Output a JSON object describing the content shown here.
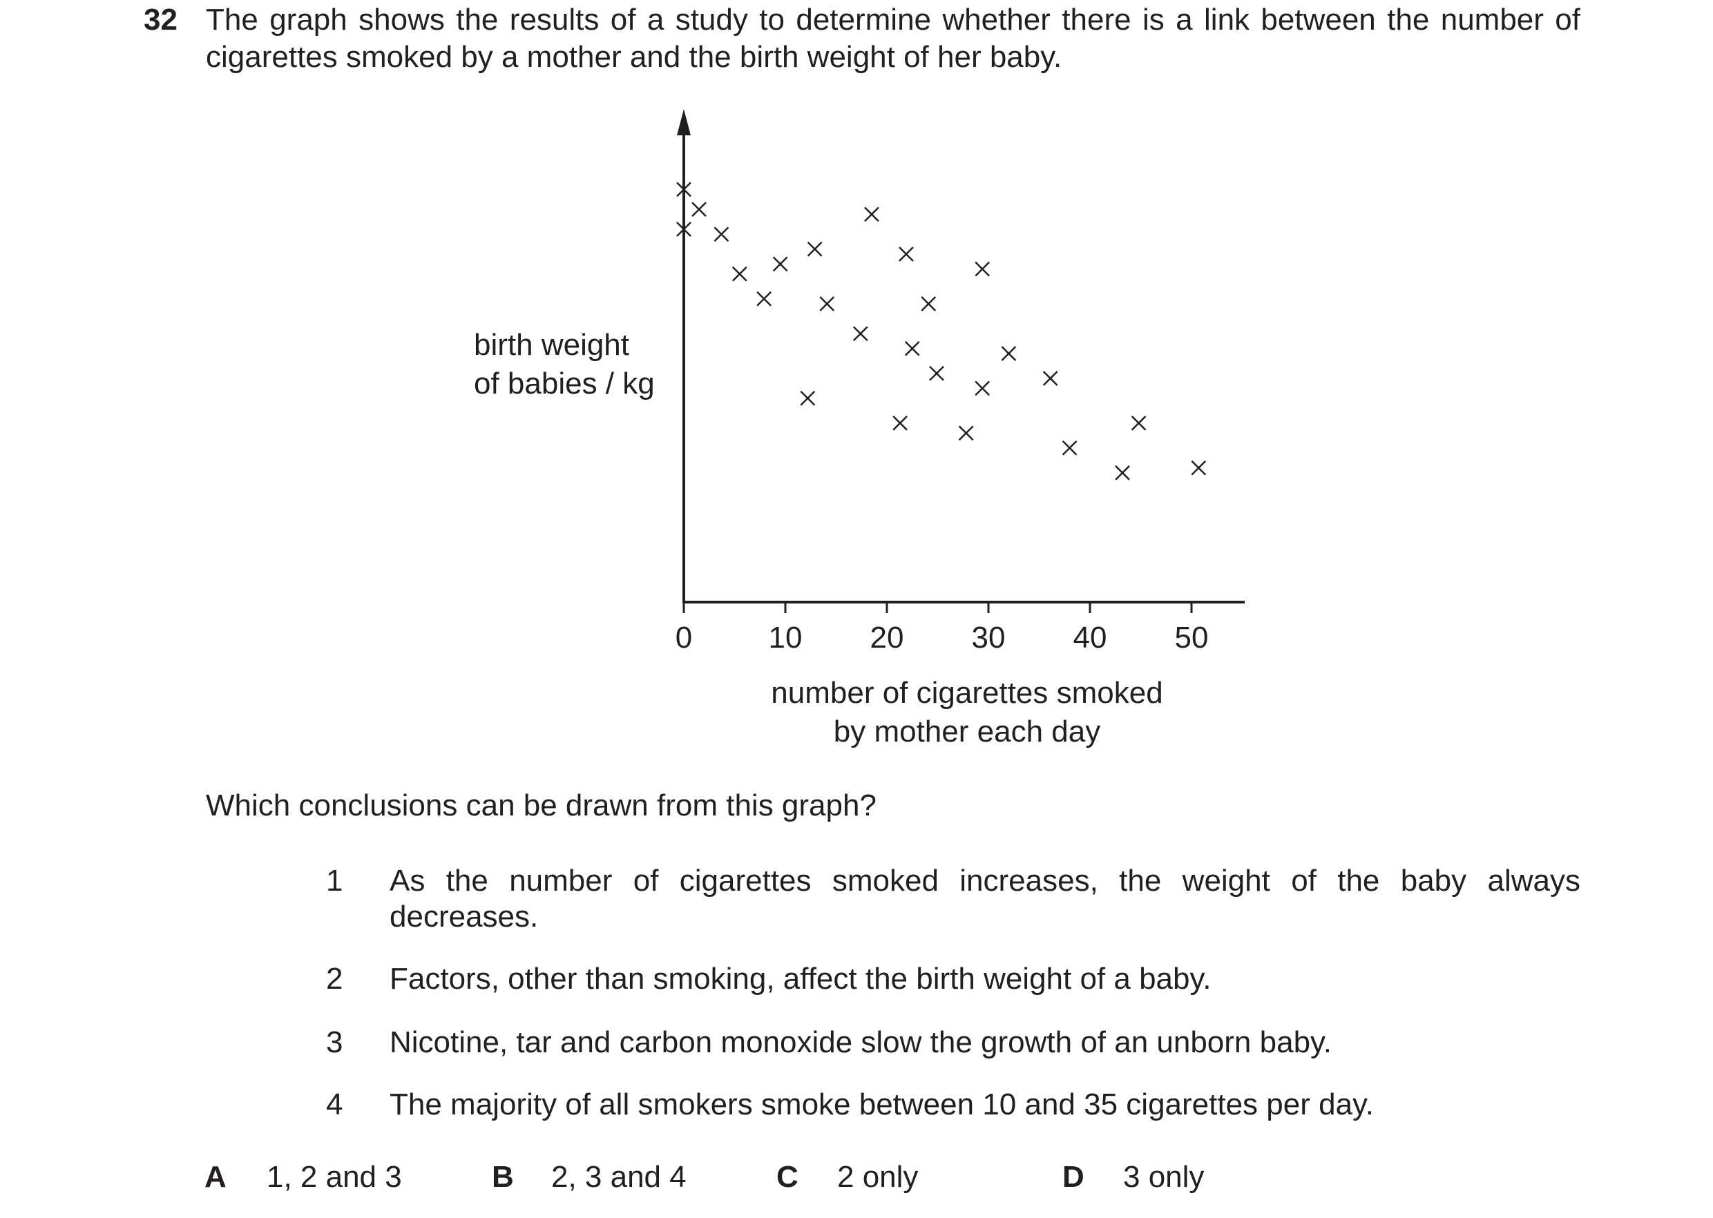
{
  "question": {
    "number": "32",
    "stem": "The graph shows the results of a study to determine whether there is a link between the number of cigarettes smoked by a mother and the birth weight of her baby.",
    "prompt": "Which conclusions can be drawn from this graph?"
  },
  "chart_data": {
    "type": "scatter",
    "marker": "cross",
    "ylabel_line1": "birth weight",
    "ylabel_line2": "of babies / kg",
    "xlabel_line1": "number of cigarettes smoked",
    "xlabel_line2": "by mother each day",
    "xlim": [
      0,
      55
    ],
    "x_ticks": [
      "0",
      "10",
      "20",
      "30",
      "40",
      "50"
    ],
    "y_ticks_labeled": false,
    "grid": false,
    "points": [
      {
        "x": 0,
        "y": 0.83
      },
      {
        "x": 0,
        "y": 0.75
      },
      {
        "x": 1.5,
        "y": 0.79
      },
      {
        "x": 3.7,
        "y": 0.74
      },
      {
        "x": 5.5,
        "y": 0.66
      },
      {
        "x": 7.9,
        "y": 0.61
      },
      {
        "x": 9.5,
        "y": 0.68
      },
      {
        "x": 12.2,
        "y": 0.41
      },
      {
        "x": 12.9,
        "y": 0.71
      },
      {
        "x": 14.1,
        "y": 0.6
      },
      {
        "x": 17.4,
        "y": 0.54
      },
      {
        "x": 18.5,
        "y": 0.78
      },
      {
        "x": 21.3,
        "y": 0.36
      },
      {
        "x": 21.9,
        "y": 0.7
      },
      {
        "x": 22.5,
        "y": 0.51
      },
      {
        "x": 24.1,
        "y": 0.6
      },
      {
        "x": 24.9,
        "y": 0.46
      },
      {
        "x": 27.8,
        "y": 0.34
      },
      {
        "x": 29.4,
        "y": 0.67
      },
      {
        "x": 29.4,
        "y": 0.43
      },
      {
        "x": 32.0,
        "y": 0.5
      },
      {
        "x": 36.1,
        "y": 0.45
      },
      {
        "x": 38.0,
        "y": 0.31
      },
      {
        "x": 43.2,
        "y": 0.26
      },
      {
        "x": 44.8,
        "y": 0.36
      },
      {
        "x": 50.7,
        "y": 0.27
      }
    ]
  },
  "statements": [
    {
      "num": "1",
      "text": "As the number of cigarettes smoked increases, the weight of the baby always decreases."
    },
    {
      "num": "2",
      "text": "Factors, other than smoking, affect the birth weight of a baby."
    },
    {
      "num": "3",
      "text": "Nicotine, tar and carbon monoxide slow the growth of an unborn baby."
    },
    {
      "num": "4",
      "text": "The majority of all smokers smoke between 10 and 35 cigarettes per day."
    }
  ],
  "options": [
    {
      "letter": "A",
      "text": "1, 2 and 3"
    },
    {
      "letter": "B",
      "text": "2, 3 and 4"
    },
    {
      "letter": "C",
      "text": "2 only"
    },
    {
      "letter": "D",
      "text": "3 only"
    }
  ]
}
